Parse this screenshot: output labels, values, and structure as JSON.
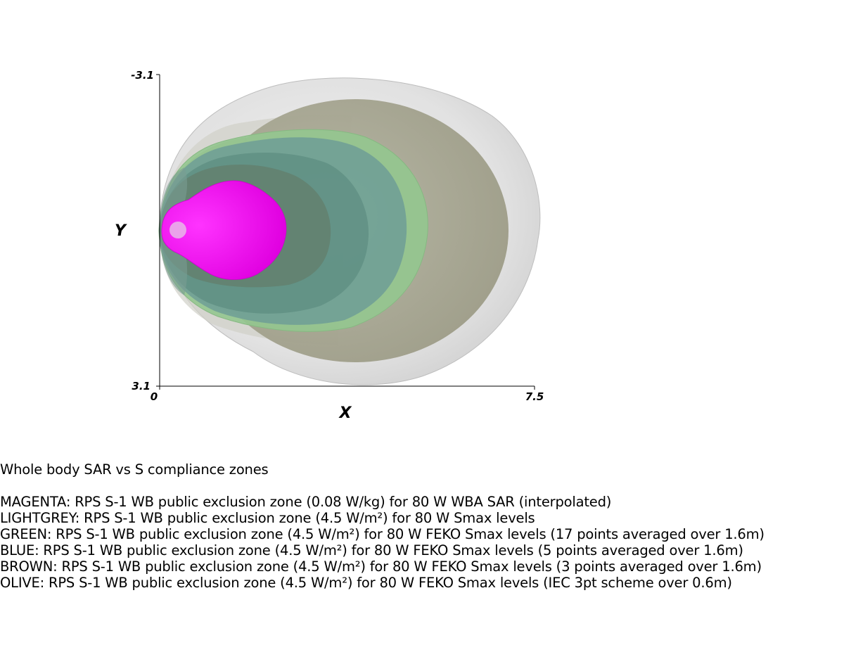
{
  "chart_data": {
    "type": "area",
    "title": "Whole body SAR vs S compliance zones",
    "xlabel": "X",
    "ylabel": "Y",
    "xlim": [
      0,
      7.5
    ],
    "ylim": [
      -3.1,
      3.1
    ],
    "x_ticks": [
      "0",
      "7.5"
    ],
    "y_ticks": [
      "-3.1",
      "3.1"
    ],
    "legend_position": "bottom",
    "grid": false,
    "series": [
      {
        "name": "LIGHTGREY",
        "color": "#d9d9d9",
        "zone": {
          "x_max": 7.5,
          "y_half": 3.1
        }
      },
      {
        "name": "OLIVE",
        "color": "#a8a790",
        "zone": {
          "x_max": 6.95,
          "y_half": 2.6
        }
      },
      {
        "name": "GREEN",
        "color": "#8fc48c",
        "zone": {
          "x_max": 5.4,
          "y_half": 2.0
        }
      },
      {
        "name": "BLUE",
        "color": "#6f9f98",
        "zone": {
          "x_max": 5.15,
          "y_half": 1.85
        }
      },
      {
        "name": "BROWN",
        "color": "#6a8476",
        "zone": {
          "x_max": 3.5,
          "y_half": 1.15
        }
      },
      {
        "name": "MAGENTA",
        "color": "#ff00ff",
        "zone": {
          "x_max": 2.5,
          "y_half": 1.0
        }
      }
    ]
  },
  "caption": {
    "title": "Whole body SAR vs S compliance zones",
    "lines": [
      "MAGENTA: RPS S-1 WB public exclusion zone (0.08 W/kg) for 80 W WBA SAR (interpolated)",
      "LIGHTGREY: RPS S-1 WB public exclusion zone (4.5 W/m²) for 80 W Smax levels",
      "GREEN: RPS S-1 WB public exclusion zone (4.5 W/m²) for 80 W FEKO Smax levels (17 points averaged over 1.6m)",
      "BLUE: RPS S-1 WB public exclusion zone (4.5 W/m²) for 80 W FEKO Smax levels (5 points averaged over 1.6m)",
      "BROWN: RPS S-1 WB public exclusion zone (4.5 W/m²) for 80 W FEKO Smax levels (3 points averaged over 1.6m)",
      "OLIVE: RPS S-1 WB public exclusion zone (4.5 W/m²) for 80 W FEKO Smax levels (IEC 3pt scheme over 0.6m)"
    ]
  }
}
